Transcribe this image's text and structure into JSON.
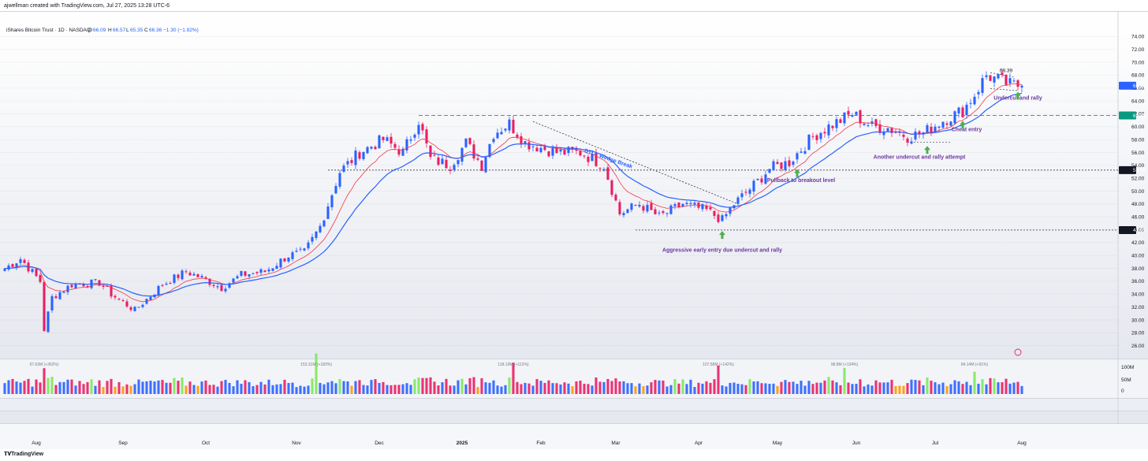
{
  "header": {
    "credit": "ajwellman created with TradingView.com, Jul 27, 2025 13:28 UTC-6"
  },
  "legend": {
    "symbol": "iShares Bitcoin Trust · 1D · NASDAQ",
    "o_label": "O",
    "o": "66.09",
    "h_label": "H",
    "h": "66.57",
    "l_label": "L",
    "l": "65.35",
    "c_label": "C",
    "c": "66.36",
    "change": "−1.30 (−1.92%)"
  },
  "footer": {
    "brand": "TradingView",
    "brand_icon": "tradingview-logo-icon"
  },
  "colors": {
    "up": "#2962ff",
    "down": "#e91e63",
    "ema_fast": "#f23645",
    "ema_slow": "#2962ff",
    "level_green": "#089981",
    "annotation": "#6a3aa0",
    "arrow": "#4caf50",
    "vol_up": "#2962ff",
    "vol_down": "#e91e63",
    "vol_green": "#7ce85a",
    "vol_orange": "#ff9800"
  },
  "chart_data": {
    "type": "candlestick",
    "symbol": "iShares Bitcoin Trust",
    "interval": "1D",
    "exchange": "NASDAQ",
    "ylim": [
      24,
      76
    ],
    "yticks": [
      "74.00",
      "72.00",
      "70.00",
      "68.00",
      "66.00",
      "64.00",
      "62.00",
      "60.00",
      "58.00",
      "56.00",
      "54.00",
      "52.00",
      "50.00",
      "48.00",
      "46.00",
      "44.00",
      "42.00",
      "40.00",
      "38.00",
      "36.00",
      "34.00",
      "32.00",
      "30.00",
      "28.00",
      "26.00"
    ],
    "x_labels": [
      {
        "label": "Aug",
        "idx": 8
      },
      {
        "label": "Sep",
        "idx": 30
      },
      {
        "label": "Oct",
        "idx": 51
      },
      {
        "label": "Nov",
        "idx": 74
      },
      {
        "label": "Dec",
        "idx": 95
      },
      {
        "label": "2025",
        "idx": 116
      },
      {
        "label": "Feb",
        "idx": 136
      },
      {
        "label": "Mar",
        "idx": 155
      },
      {
        "label": "Apr",
        "idx": 176
      },
      {
        "label": "May",
        "idx": 196
      },
      {
        "label": "Jun",
        "idx": 216
      },
      {
        "label": "Jul",
        "idx": 236
      },
      {
        "label": "Aug",
        "idx": 258
      }
    ],
    "price_tags": [
      {
        "value": 66.36,
        "label": "66.36",
        "style": "blue"
      },
      {
        "value": 61.75,
        "label": "61.75",
        "style": "green"
      },
      {
        "value": 53.26,
        "label": "53.26",
        "style": "dark"
      },
      {
        "value": 43.95,
        "label": "43.95",
        "style": "dark"
      }
    ],
    "anchors": [
      [
        0,
        38.0
      ],
      [
        4,
        39.5
      ],
      [
        9,
        36.0
      ],
      [
        10,
        28.5
      ],
      [
        12,
        33.5
      ],
      [
        17,
        35.5
      ],
      [
        24,
        35.8
      ],
      [
        27,
        34.0
      ],
      [
        33,
        31.5
      ],
      [
        40,
        35.5
      ],
      [
        46,
        37.5
      ],
      [
        50,
        36.5
      ],
      [
        55,
        35.0
      ],
      [
        60,
        37.0
      ],
      [
        66,
        37.5
      ],
      [
        72,
        40.0
      ],
      [
        76,
        40.5
      ],
      [
        80,
        44.5
      ],
      [
        85,
        53.0
      ],
      [
        90,
        56.0
      ],
      [
        96,
        58.0
      ],
      [
        101,
        56.0
      ],
      [
        105,
        61.0
      ],
      [
        108,
        55.0
      ],
      [
        113,
        54.0
      ],
      [
        117,
        57.5
      ],
      [
        121,
        54.0
      ],
      [
        124,
        59.0
      ],
      [
        128,
        60.5
      ],
      [
        132,
        57.5
      ],
      [
        140,
        56.0
      ],
      [
        146,
        56.0
      ],
      [
        152,
        54.0
      ],
      [
        156,
        46.5
      ],
      [
        161,
        48.0
      ],
      [
        166,
        46.0
      ],
      [
        172,
        48.0
      ],
      [
        178,
        47.0
      ],
      [
        182,
        45.5
      ],
      [
        185,
        48.0
      ],
      [
        191,
        51.5
      ],
      [
        194,
        53.5
      ],
      [
        199,
        54.5
      ],
      [
        205,
        58.5
      ],
      [
        209,
        60.0
      ],
      [
        215,
        62.0
      ],
      [
        220,
        60.0
      ],
      [
        224,
        59.8
      ],
      [
        229,
        58.5
      ],
      [
        233,
        59.0
      ],
      [
        238,
        61.0
      ],
      [
        243,
        62.5
      ],
      [
        246,
        65.0
      ],
      [
        249,
        68.0
      ],
      [
        255,
        66.5
      ],
      [
        258,
        66.36
      ]
    ],
    "volume_axis": [
      "100M",
      "50M",
      "0"
    ],
    "volume_spikes": [
      {
        "idx": 10,
        "label": "97.63M (+362%)"
      },
      {
        "idx": 79,
        "label": "153.31M (+183%)"
      },
      {
        "idx": 129,
        "label": "118.19M (+112%)"
      },
      {
        "idx": 181,
        "label": "107.58M (+142%)"
      },
      {
        "idx": 213,
        "label": "98.8M (+134%)"
      },
      {
        "idx": 246,
        "label": "84.14M (+91%)"
      }
    ],
    "levels": [
      {
        "name": "breakout-61.75",
        "value": 61.75,
        "from_idx": 105,
        "style": "green-dashed"
      },
      {
        "name": "level-53.26",
        "value": 53.26,
        "from_idx": 82,
        "style": "black-dotted"
      },
      {
        "name": "level-43.95",
        "value": 43.95,
        "from_idx": 160,
        "style": "black-dotted"
      }
    ],
    "trendline": {
      "from": [
        134,
        60.8
      ],
      "to": [
        186,
        48.0
      ]
    },
    "annotations": [
      {
        "text": "DTL - Wedge Break",
        "idx": 153,
        "y": 54.8,
        "rotate": 19
      },
      {
        "text": "Aggressive early entry due undercut and rally",
        "idx": 182,
        "y": 40.6
      },
      {
        "text": "Pullback to breakout level",
        "idx": 202,
        "y": 51.4
      },
      {
        "text": "Another undercut and rally attempt",
        "idx": 232,
        "y": 55.0
      },
      {
        "text": "Cheat entry",
        "idx": 244,
        "y": 59.3
      },
      {
        "text": "Undercut and rally",
        "idx": 257,
        "y": 64.2
      },
      {
        "text": "68.39",
        "idx": 254,
        "y": 68.5
      }
    ],
    "arrows": [
      {
        "idx": 182,
        "y": 43.2
      },
      {
        "idx": 201,
        "y": 52.8
      },
      {
        "idx": 234,
        "y": 56.4
      },
      {
        "idx": 243,
        "y": 60.3
      },
      {
        "idx": 257,
        "y": 64.8
      }
    ]
  }
}
